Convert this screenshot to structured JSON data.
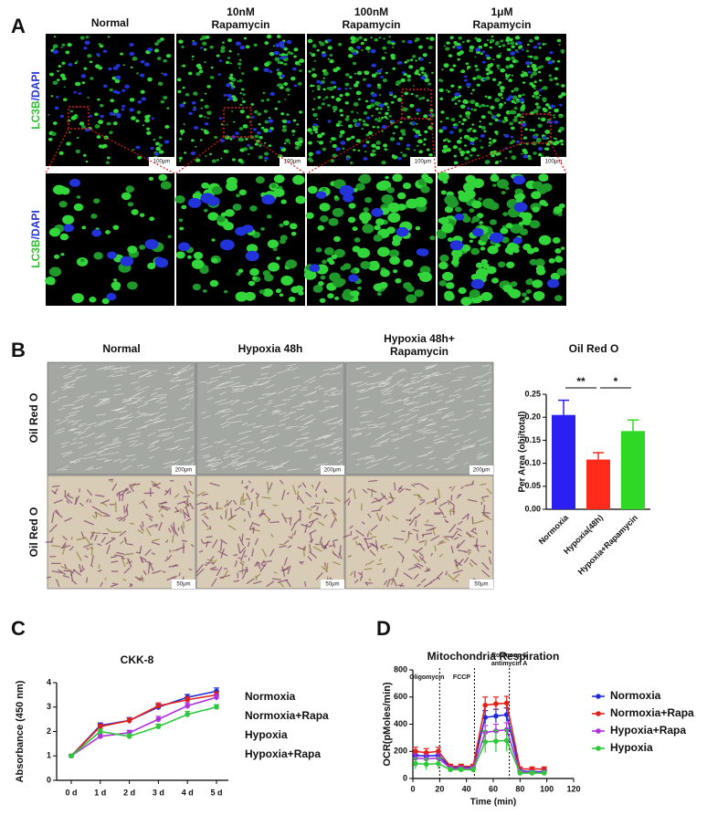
{
  "figure": {
    "panel_labels": [
      "A",
      "B",
      "C",
      "D"
    ],
    "panel_a": {
      "columns": [
        [
          "Normal"
        ],
        [
          "10nM",
          "Rapamycin"
        ],
        [
          "100nM",
          "Rapamycin"
        ],
        [
          "1μM",
          "Rapamycin"
        ]
      ],
      "stain_green": "LC3B",
      "stain_blue": "/DAPI",
      "scale_bar": "100μm"
    },
    "panel_b": {
      "columns": [
        [
          "Normal"
        ],
        [
          "Hypoxia 48h"
        ],
        [
          "Hypoxia 48h+",
          "Rapamycin"
        ]
      ],
      "row_label": "Oil Red O",
      "scale_bars": [
        "200μm",
        "50μm"
      ]
    }
  },
  "chart_data": [
    {
      "type": "bar",
      "title": "Oil Red O",
      "y_label": "Per Area (obj/total)",
      "categories": [
        "Normoxia",
        "Hypoxia(48h)",
        "Hypoxia+Rapamycin"
      ],
      "values": [
        0.205,
        0.108,
        0.17
      ],
      "errors": [
        0.032,
        0.015,
        0.024
      ],
      "colors": [
        "#2b1ff2",
        "#ff2a1a",
        "#2fd825"
      ],
      "significance": [
        "**",
        "*"
      ],
      "ylim": [
        0,
        0.25
      ],
      "yticks": [
        {
          "value": 0,
          "label": "0.00"
        },
        {
          "value": 0.05,
          "label": "0.05"
        },
        {
          "value": 0.1,
          "label": "0.10"
        },
        {
          "value": 0.15,
          "label": "0.15"
        },
        {
          "value": 0.2,
          "label": "0.20"
        },
        {
          "value": 0.25,
          "label": "0.25"
        }
      ]
    },
    {
      "type": "line",
      "title": "CKK-8",
      "y_label": "Absorbance (450 nm)",
      "categories": [
        "0 d",
        "1 d",
        "2 d",
        "3 d",
        "4 d",
        "5 d"
      ],
      "legend_markers": false,
      "series": [
        {
          "name": "Normoxia",
          "color": "#1f2ad8",
          "values": [
            1.0,
            2.25,
            2.45,
            3.0,
            3.4,
            3.65
          ],
          "errors": [
            0.05,
            0.1,
            0.12,
            0.12,
            0.12,
            0.13
          ]
        },
        {
          "name": "Normoxia+Rapa",
          "color": "#e3211c",
          "values": [
            1.0,
            2.2,
            2.45,
            3.05,
            3.3,
            3.5
          ],
          "errors": [
            0.05,
            0.1,
            0.1,
            0.12,
            0.12,
            0.12
          ]
        },
        {
          "name": "Hypoxia",
          "color": "#b030e0",
          "values": [
            1.0,
            1.8,
            1.95,
            2.5,
            3.05,
            3.4
          ],
          "errors": [
            0.05,
            0.1,
            0.1,
            0.12,
            0.12,
            0.12
          ]
        },
        {
          "name": "Hypoxia+Rapa",
          "color": "#2ec83a",
          "values": [
            1.0,
            2.0,
            1.8,
            2.2,
            2.7,
            3.0
          ],
          "errors": [
            0.05,
            0.1,
            0.1,
            0.1,
            0.12,
            0.1
          ]
        }
      ],
      "ylim": [
        0,
        4
      ],
      "yticks": [
        0,
        1,
        2,
        3,
        4
      ]
    },
    {
      "type": "line",
      "title": "Mitochondria Respiration",
      "x_label": "Time (min)",
      "y_label": "OCR(pMoles/min)",
      "legend_markers": true,
      "x": [
        2,
        10,
        19,
        28,
        36,
        45,
        54,
        62,
        70,
        80,
        89,
        98
      ],
      "series": [
        {
          "name": "Normoxia",
          "color": "#1f2ad8",
          "values": [
            170,
            165,
            170,
            85,
            85,
            85,
            450,
            460,
            470,
            55,
            50,
            50
          ],
          "errors": [
            30,
            30,
            30,
            15,
            15,
            15,
            50,
            50,
            50,
            15,
            15,
            15
          ]
        },
        {
          "name": "Normoxia+Rapa",
          "color": "#e3211c",
          "values": [
            200,
            190,
            200,
            90,
            90,
            90,
            540,
            550,
            555,
            70,
            70,
            70
          ],
          "errors": [
            30,
            30,
            30,
            15,
            15,
            15,
            60,
            50,
            50,
            15,
            15,
            15
          ]
        },
        {
          "name": "Hypoxia+Rapa",
          "color": "#b030e0",
          "values": [
            150,
            145,
            150,
            75,
            75,
            75,
            340,
            350,
            360,
            50,
            45,
            45
          ],
          "errors": [
            30,
            30,
            30,
            15,
            15,
            15,
            50,
            50,
            50,
            15,
            15,
            15
          ]
        },
        {
          "name": "Hypoxia",
          "color": "#2ec83a",
          "values": [
            110,
            105,
            110,
            65,
            65,
            65,
            270,
            275,
            280,
            40,
            40,
            40
          ],
          "errors": [
            40,
            40,
            40,
            15,
            15,
            15,
            80,
            80,
            80,
            15,
            15,
            15
          ]
        }
      ],
      "annotations": [
        {
          "x": 20,
          "label": [
            "Oligomycin"
          ]
        },
        {
          "x": 46,
          "label": [
            "FCCP"
          ]
        },
        {
          "x": 72,
          "label": [
            "Rotenone &",
            "antimycin A"
          ]
        }
      ],
      "xlim": [
        0,
        120
      ],
      "xticks": [
        0,
        20,
        40,
        60,
        80,
        100,
        120
      ],
      "ylim": [
        0,
        800
      ],
      "yticks": [
        0,
        200,
        400,
        600,
        800
      ]
    }
  ]
}
